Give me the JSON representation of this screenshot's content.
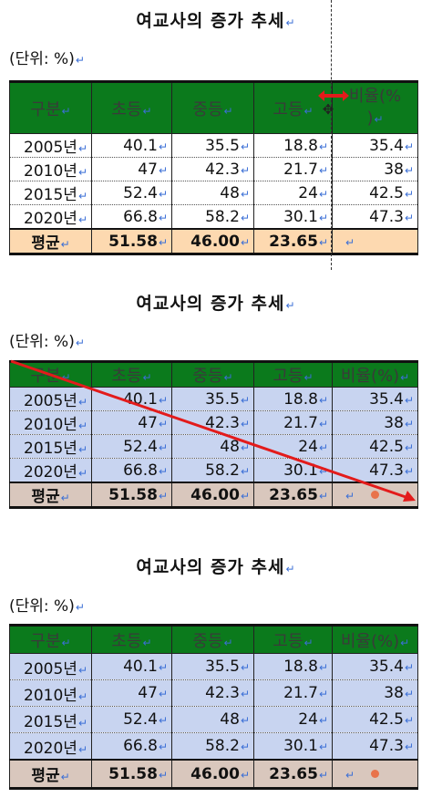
{
  "title": "여교사의 증가 추세",
  "unit_label": "(단위: %)",
  "para_mark": "↵",
  "columns": [
    "구분",
    "초등",
    "중등",
    "고등",
    "비율(%)"
  ],
  "col3_header_t1": "비율(%",
  "col3_header_t1_line2": ")",
  "rows": [
    {
      "year": "2005년",
      "elementary": "40.1",
      "middle": "35.5",
      "high": "18.8",
      "ratio": "35.4"
    },
    {
      "year": "2010년",
      "elementary": "47",
      "middle": "42.3",
      "high": "21.7",
      "ratio": "38"
    },
    {
      "year": "2015년",
      "elementary": "52.4",
      "middle": "48",
      "high": "24",
      "ratio": "42.5"
    },
    {
      "year": "2020년",
      "elementary": "66.8",
      "middle": "58.2",
      "high": "30.1",
      "ratio": "47.3"
    }
  ],
  "average": {
    "label": "평균",
    "elementary": "51.58",
    "middle": "46.00",
    "high": "23.65",
    "ratio": ""
  },
  "colors": {
    "header_green": "#0b7a1c",
    "avg_peach": "#fdd9b0",
    "row_blue": "#c8d4f0",
    "avg_taupe": "#d9c7bd",
    "arrow_red": "#e31b1b"
  },
  "icons": [
    "paragraph-mark-icon",
    "column-resize-cursor-icon",
    "red-arrow-icon"
  ]
}
